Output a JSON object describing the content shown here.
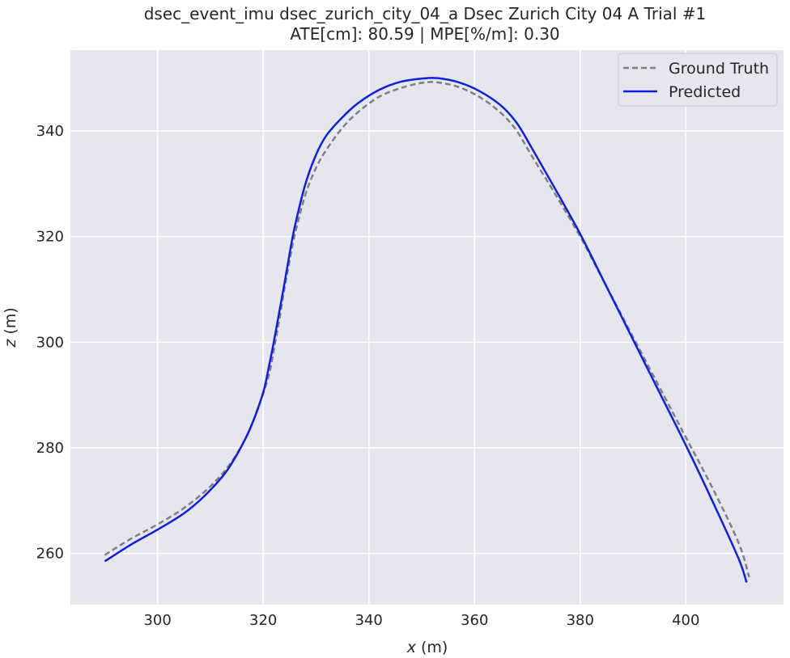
{
  "chart_data": {
    "type": "line",
    "title": "dsec_event_imu dsec_zurich_city_04_a Dsec Zurich City 04 A Trial #1",
    "subtitle": "ATE[cm]: 80.59 | MPE[%/m]: 0.30",
    "xlabel_var": "x",
    "xlabel_unit": " (m)",
    "ylabel_var": "z",
    "ylabel_unit": " (m)",
    "xlim": [
      283.5,
      418.5
    ],
    "ylim": [
      250.3,
      355.3
    ],
    "xticks": [
      300,
      320,
      340,
      360,
      380,
      400
    ],
    "yticks": [
      260,
      280,
      300,
      320,
      340
    ],
    "grid": true,
    "legend_position": "top-right",
    "series": [
      {
        "name": "Ground Truth",
        "color": "#7f7f7f",
        "style": "dashed",
        "x": [
          290,
          295,
          300,
          305,
          310,
          314,
          317,
          319,
          321,
          322,
          323,
          324,
          325,
          326,
          328,
          330,
          332,
          335,
          338,
          342,
          346,
          350,
          353,
          357,
          361,
          365,
          368,
          371,
          375,
          380,
          385,
          390,
          395,
          400,
          405,
          410,
          412
        ],
        "y": [
          259.7,
          262.8,
          265.5,
          268.6,
          272.7,
          277.3,
          282.5,
          287.5,
          293.5,
          298.5,
          304.0,
          310.0,
          315.5,
          320.5,
          328.0,
          333.0,
          336.5,
          340.6,
          343.6,
          346.5,
          348.1,
          349.1,
          349.2,
          348.3,
          346.4,
          343.4,
          340.0,
          335.0,
          328.5,
          320.0,
          310.5,
          301.0,
          291.5,
          282.0,
          272.5,
          262.0,
          255.5
        ]
      },
      {
        "name": "Predicted",
        "color": "#0f1fe0",
        "style": "solid",
        "x": [
          290,
          295,
          300,
          305,
          309,
          313,
          316,
          318,
          320,
          321,
          322,
          323,
          324,
          325,
          326,
          328,
          330,
          332,
          335,
          338,
          342,
          346,
          350,
          353,
          357,
          361,
          365,
          368,
          371,
          375,
          380,
          385,
          390,
          395,
          400,
          405,
          410,
          411.5
        ],
        "y": [
          258.5,
          261.7,
          264.5,
          267.6,
          271.0,
          275.5,
          280.5,
          284.8,
          290.5,
          295.0,
          300.0,
          305.5,
          311.0,
          316.8,
          322.0,
          330.0,
          335.5,
          339.2,
          342.6,
          345.3,
          347.8,
          349.3,
          349.9,
          350.0,
          349.2,
          347.5,
          344.8,
          341.5,
          336.5,
          329.5,
          320.5,
          310.5,
          300.5,
          290.5,
          280.5,
          270.0,
          259.0,
          254.5
        ]
      }
    ]
  }
}
